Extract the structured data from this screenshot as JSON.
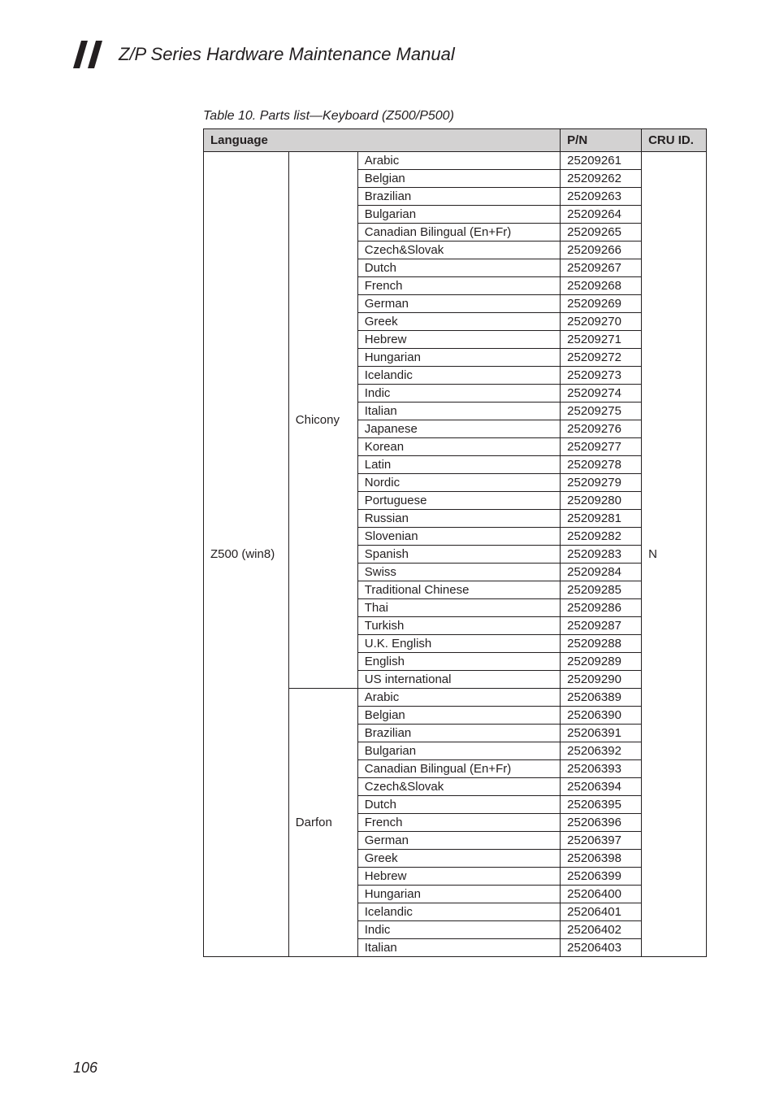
{
  "doc_title": "Z/P Series Hardware Maintenance Manual",
  "table_caption": "Table 10. Parts list—Keyboard (Z500/P500)",
  "headers": {
    "language": "Language",
    "pn": "P/N",
    "cru": "CRU ID."
  },
  "model": "Z500 (win8)",
  "cru_value": "N",
  "groups": [
    {
      "brand": "Chicony",
      "rows": [
        {
          "lang": "Arabic",
          "pn": "25209261"
        },
        {
          "lang": "Belgian",
          "pn": "25209262"
        },
        {
          "lang": "Brazilian",
          "pn": "25209263"
        },
        {
          "lang": "Bulgarian",
          "pn": "25209264"
        },
        {
          "lang": "Canadian Bilingual (En+Fr)",
          "pn": "25209265"
        },
        {
          "lang": "Czech&Slovak",
          "pn": "25209266"
        },
        {
          "lang": "Dutch",
          "pn": "25209267"
        },
        {
          "lang": "French",
          "pn": "25209268"
        },
        {
          "lang": "German",
          "pn": "25209269"
        },
        {
          "lang": "Greek",
          "pn": "25209270"
        },
        {
          "lang": "Hebrew",
          "pn": "25209271"
        },
        {
          "lang": "Hungarian",
          "pn": "25209272"
        },
        {
          "lang": "Icelandic",
          "pn": "25209273"
        },
        {
          "lang": "Indic",
          "pn": "25209274"
        },
        {
          "lang": "Italian",
          "pn": "25209275"
        },
        {
          "lang": "Japanese",
          "pn": "25209276"
        },
        {
          "lang": "Korean",
          "pn": "25209277"
        },
        {
          "lang": "Latin",
          "pn": "25209278"
        },
        {
          "lang": "Nordic",
          "pn": "25209279"
        },
        {
          "lang": "Portuguese",
          "pn": "25209280"
        },
        {
          "lang": "Russian",
          "pn": "25209281"
        },
        {
          "lang": "Slovenian",
          "pn": "25209282"
        },
        {
          "lang": "Spanish",
          "pn": "25209283"
        },
        {
          "lang": "Swiss",
          "pn": "25209284"
        },
        {
          "lang": "Traditional Chinese",
          "pn": "25209285"
        },
        {
          "lang": "Thai",
          "pn": "25209286"
        },
        {
          "lang": "Turkish",
          "pn": "25209287"
        },
        {
          "lang": "U.K. English",
          "pn": "25209288"
        },
        {
          "lang": "English",
          "pn": "25209289"
        },
        {
          "lang": "US international",
          "pn": "25209290"
        }
      ]
    },
    {
      "brand": "Darfon",
      "rows": [
        {
          "lang": "Arabic",
          "pn": "25206389"
        },
        {
          "lang": "Belgian",
          "pn": "25206390"
        },
        {
          "lang": "Brazilian",
          "pn": "25206391"
        },
        {
          "lang": "Bulgarian",
          "pn": "25206392"
        },
        {
          "lang": "Canadian Bilingual (En+Fr)",
          "pn": "25206393"
        },
        {
          "lang": "Czech&Slovak",
          "pn": "25206394"
        },
        {
          "lang": "Dutch",
          "pn": "25206395"
        },
        {
          "lang": "French",
          "pn": "25206396"
        },
        {
          "lang": "German",
          "pn": "25206397"
        },
        {
          "lang": "Greek",
          "pn": "25206398"
        },
        {
          "lang": "Hebrew",
          "pn": "25206399"
        },
        {
          "lang": "Hungarian",
          "pn": "25206400"
        },
        {
          "lang": "Icelandic",
          "pn": "25206401"
        },
        {
          "lang": "Indic",
          "pn": "25206402"
        },
        {
          "lang": "Italian",
          "pn": "25206403"
        }
      ]
    }
  ],
  "page_number": "106",
  "colors": {
    "header_bg": "#d3d2d2",
    "border": "#231f20",
    "text": "#231f20",
    "slash": "#231f20"
  }
}
